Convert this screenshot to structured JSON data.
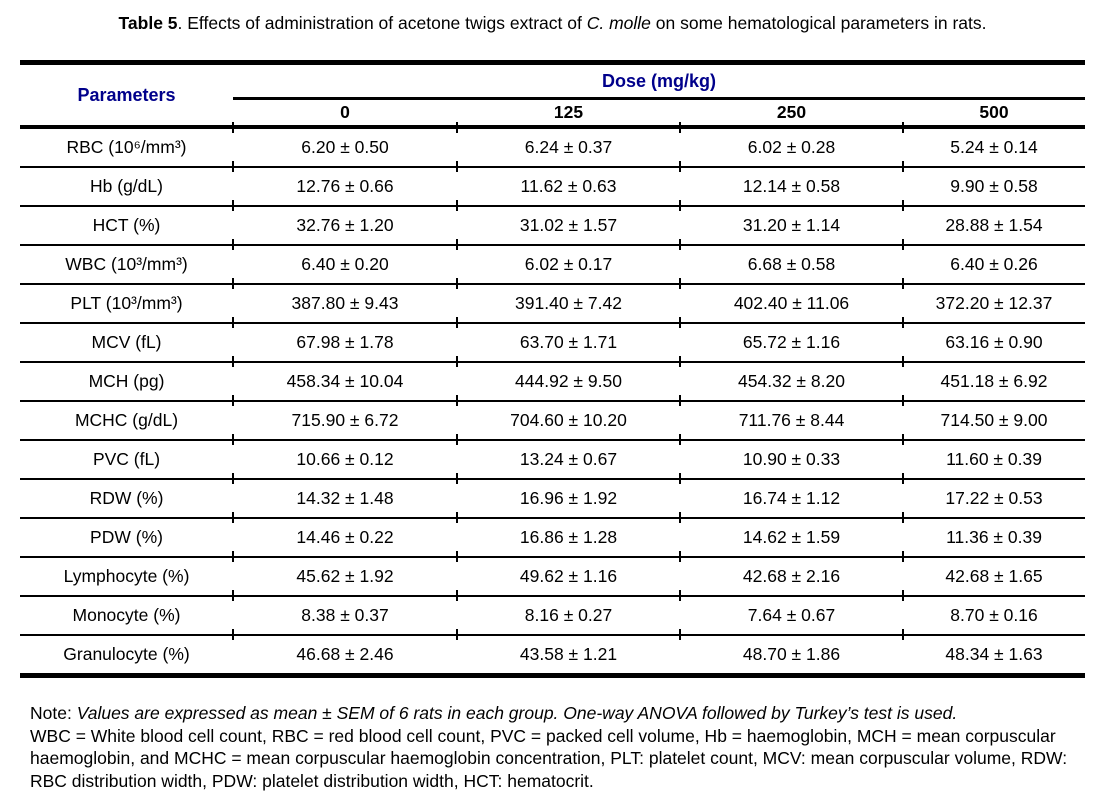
{
  "caption": {
    "label": "Table 5",
    "text_before_species": ". Effects of administration of acetone twigs extract of ",
    "species": "C. molle",
    "text_after_species": " on some hematological parameters in rats."
  },
  "table": {
    "param_header": "Parameters",
    "dose_header": "Dose (mg/kg)",
    "dose_levels": [
      "0",
      "125",
      "250",
      "500"
    ],
    "rows": [
      {
        "param": "RBC (10⁶/mm³)",
        "values": [
          "6.20 ± 0.50",
          "6.24 ± 0.37",
          "6.02 ± 0.28",
          "5.24 ± 0.14"
        ]
      },
      {
        "param": "Hb (g/dL)",
        "values": [
          "12.76 ± 0.66",
          "11.62 ± 0.63",
          "12.14 ± 0.58",
          "9.90 ± 0.58"
        ]
      },
      {
        "param": "HCT (%)",
        "values": [
          "32.76 ± 1.20",
          "31.02 ± 1.57",
          "31.20 ± 1.14",
          "28.88 ± 1.54"
        ]
      },
      {
        "param": "WBC (10³/mm³)",
        "values": [
          "6.40 ± 0.20",
          "6.02 ± 0.17",
          "6.68 ± 0.58",
          "6.40 ± 0.26"
        ]
      },
      {
        "param": "PLT (10³/mm³)",
        "values": [
          "387.80 ± 9.43",
          "391.40 ± 7.42",
          "402.40 ± 11.06",
          "372.20 ± 12.37"
        ]
      },
      {
        "param": "MCV (fL)",
        "values": [
          "67.98 ± 1.78",
          "63.70 ± 1.71",
          "65.72 ± 1.16",
          "63.16 ± 0.90"
        ]
      },
      {
        "param": "MCH (pg)",
        "values": [
          "458.34 ± 10.04",
          "444.92 ± 9.50",
          "454.32 ± 8.20",
          "451.18 ± 6.92"
        ]
      },
      {
        "param": "MCHC (g/dL)",
        "values": [
          "715.90 ± 6.72",
          "704.60 ± 10.20",
          "711.76 ± 8.44",
          "714.50 ± 9.00"
        ]
      },
      {
        "param": "PVC (fL)",
        "values": [
          "10.66 ± 0.12",
          "13.24 ± 0.67",
          "10.90 ± 0.33",
          "11.60 ± 0.39"
        ]
      },
      {
        "param": "RDW (%)",
        "values": [
          "14.32 ± 1.48",
          "16.96 ± 1.92",
          "16.74 ± 1.12",
          "17.22 ± 0.53"
        ]
      },
      {
        "param": "PDW (%)",
        "values": [
          "14.46 ± 0.22",
          "16.86 ± 1.28",
          "14.62 ± 1.59",
          "11.36 ± 0.39"
        ]
      },
      {
        "param": "Lymphocyte (%)",
        "values": [
          "45.62 ± 1.92",
          "49.62 ± 1.16",
          "42.68 ± 2.16",
          "42.68 ± 1.65"
        ]
      },
      {
        "param": "Monocyte (%)",
        "values": [
          "8.38 ± 0.37",
          "8.16 ± 0.27",
          "7.64 ± 0.67",
          "8.70 ± 0.16"
        ]
      },
      {
        "param": "Granulocyte (%)",
        "values": [
          "46.68 ± 2.46",
          "43.58 ± 1.21",
          "48.70 ± 1.86",
          "48.34 ± 1.63"
        ]
      }
    ]
  },
  "note": {
    "prefix": "Note: ",
    "statistics": "Values are expressed as mean ± SEM of 6 rats in each group. One-way ANOVA followed by Turkey’s test is used.",
    "abbreviations": "WBC = White blood cell count, RBC = red blood cell count, PVC = packed cell volume, Hb = haemoglobin, MCH = mean corpuscular haemoglobin, and MCHC = mean corpuscular haemoglobin concentration, PLT: platelet count, MCV: mean corpuscular volume, RDW: RBC distribution width, PDW: platelet distribution width, HCT: hematocrit."
  },
  "colors": {
    "header_text": "#00008B",
    "body_text": "#000000",
    "rule": "#000000",
    "background": "#FFFFFF"
  }
}
